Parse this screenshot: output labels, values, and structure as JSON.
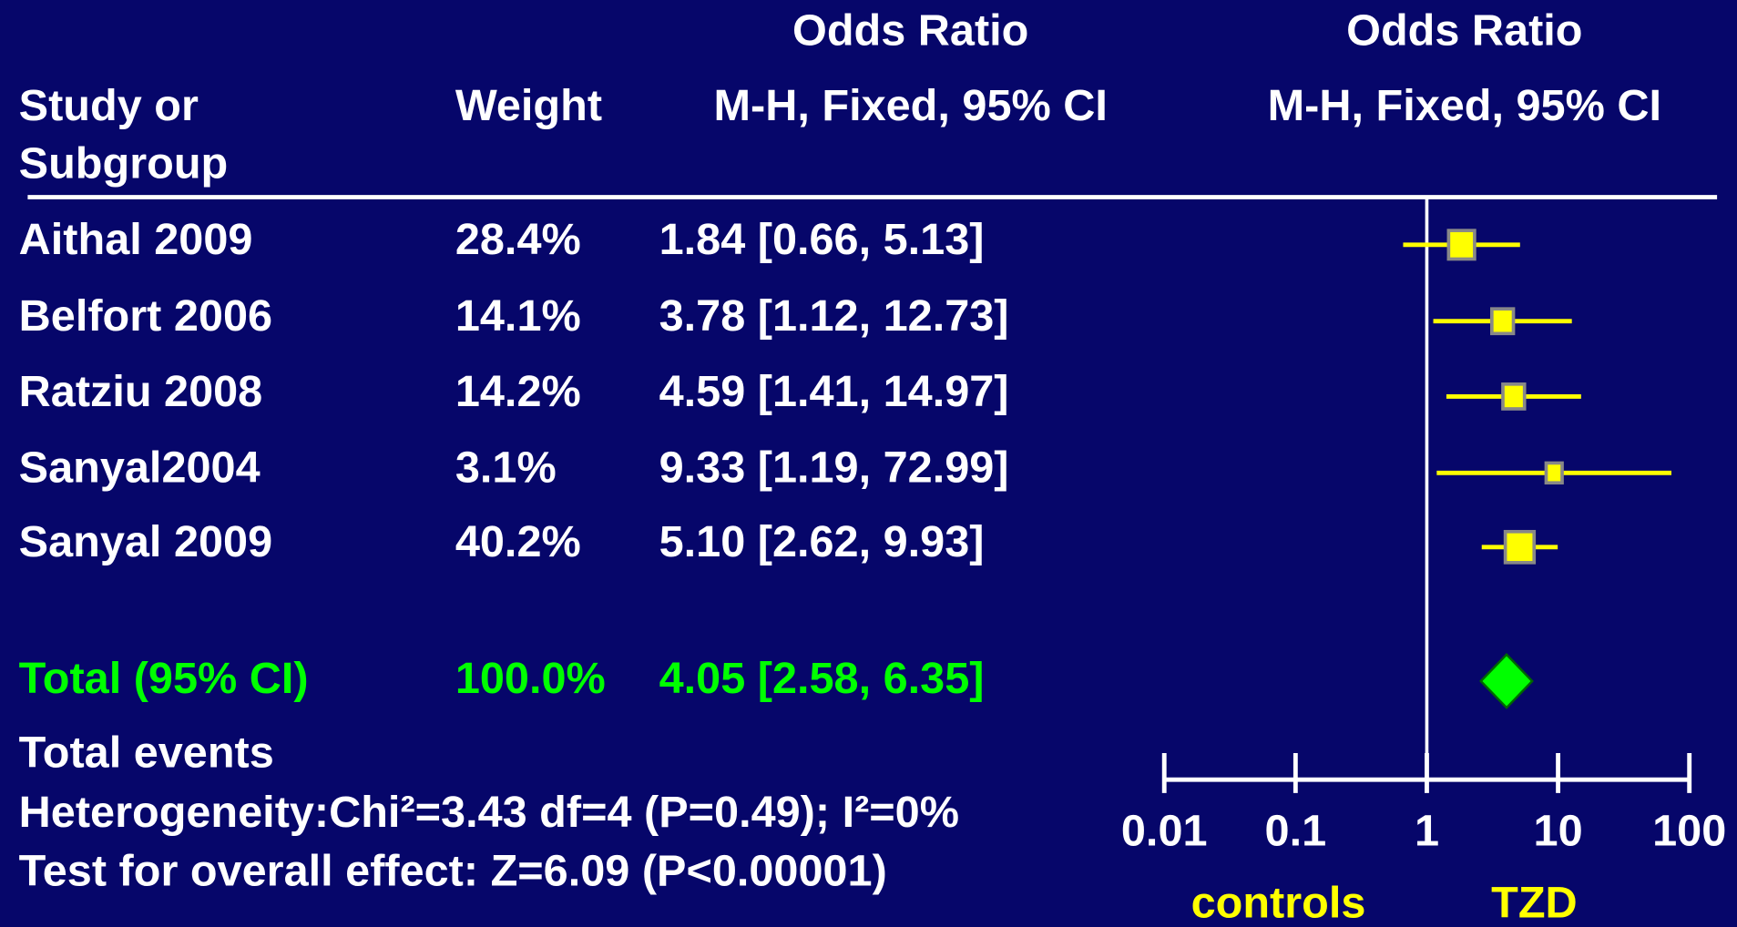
{
  "chart_data": {
    "type": "forest",
    "headers": {
      "study": "Study or Subgroup",
      "study_line1": "Study or",
      "study_line2": "Subgroup",
      "weight": "Weight",
      "or_title": "Odds Ratio",
      "or_method": "M-H, Fixed, 95% CI",
      "plot_title": "Odds Ratio",
      "plot_method": "M-H, Fixed, 95% CI"
    },
    "studies": [
      {
        "name": "Aithal 2009",
        "weight": 28.4,
        "weight_label": "28.4%",
        "or": 1.84,
        "lo": 0.66,
        "hi": 5.13,
        "or_label": "1.84 [0.66, 5.13]"
      },
      {
        "name": "Belfort 2006",
        "weight": 14.1,
        "weight_label": "14.1%",
        "or": 3.78,
        "lo": 1.12,
        "hi": 12.73,
        "or_label": "3.78 [1.12, 12.73]"
      },
      {
        "name": "Ratziu 2008",
        "weight": 14.2,
        "weight_label": "14.2%",
        "or": 4.59,
        "lo": 1.41,
        "hi": 14.97,
        "or_label": "4.59 [1.41, 14.97]"
      },
      {
        "name": "Sanyal2004",
        "weight": 3.1,
        "weight_label": "3.1%",
        "or": 9.33,
        "lo": 1.19,
        "hi": 72.99,
        "or_label": "9.33 [1.19, 72.99]"
      },
      {
        "name": "Sanyal 2009",
        "weight": 40.2,
        "weight_label": "40.2%",
        "or": 5.1,
        "lo": 2.62,
        "hi": 9.93,
        "or_label": "5.10 [2.62, 9.93]"
      }
    ],
    "total": {
      "name": "Total (95% CI)",
      "weight": 100.0,
      "weight_label": "100.0%",
      "or": 4.05,
      "lo": 2.58,
      "hi": 6.35,
      "or_label": "4.05 [2.58, 6.35]"
    },
    "footer": [
      "Total events",
      "Heterogeneity:Chi²=3.43 df=4 (P=0.49); I²=0%",
      "Test for overall effect: Z=6.09 (P<0.00001)"
    ],
    "xlim": [
      0.01,
      100
    ],
    "xticks": [
      0.01,
      0.1,
      1,
      10,
      100
    ],
    "log_x": true,
    "null_value": 1,
    "left_label": "controls",
    "right_label": "TZD",
    "marker_color": "#ffff00",
    "total_color": "#00ff00"
  }
}
